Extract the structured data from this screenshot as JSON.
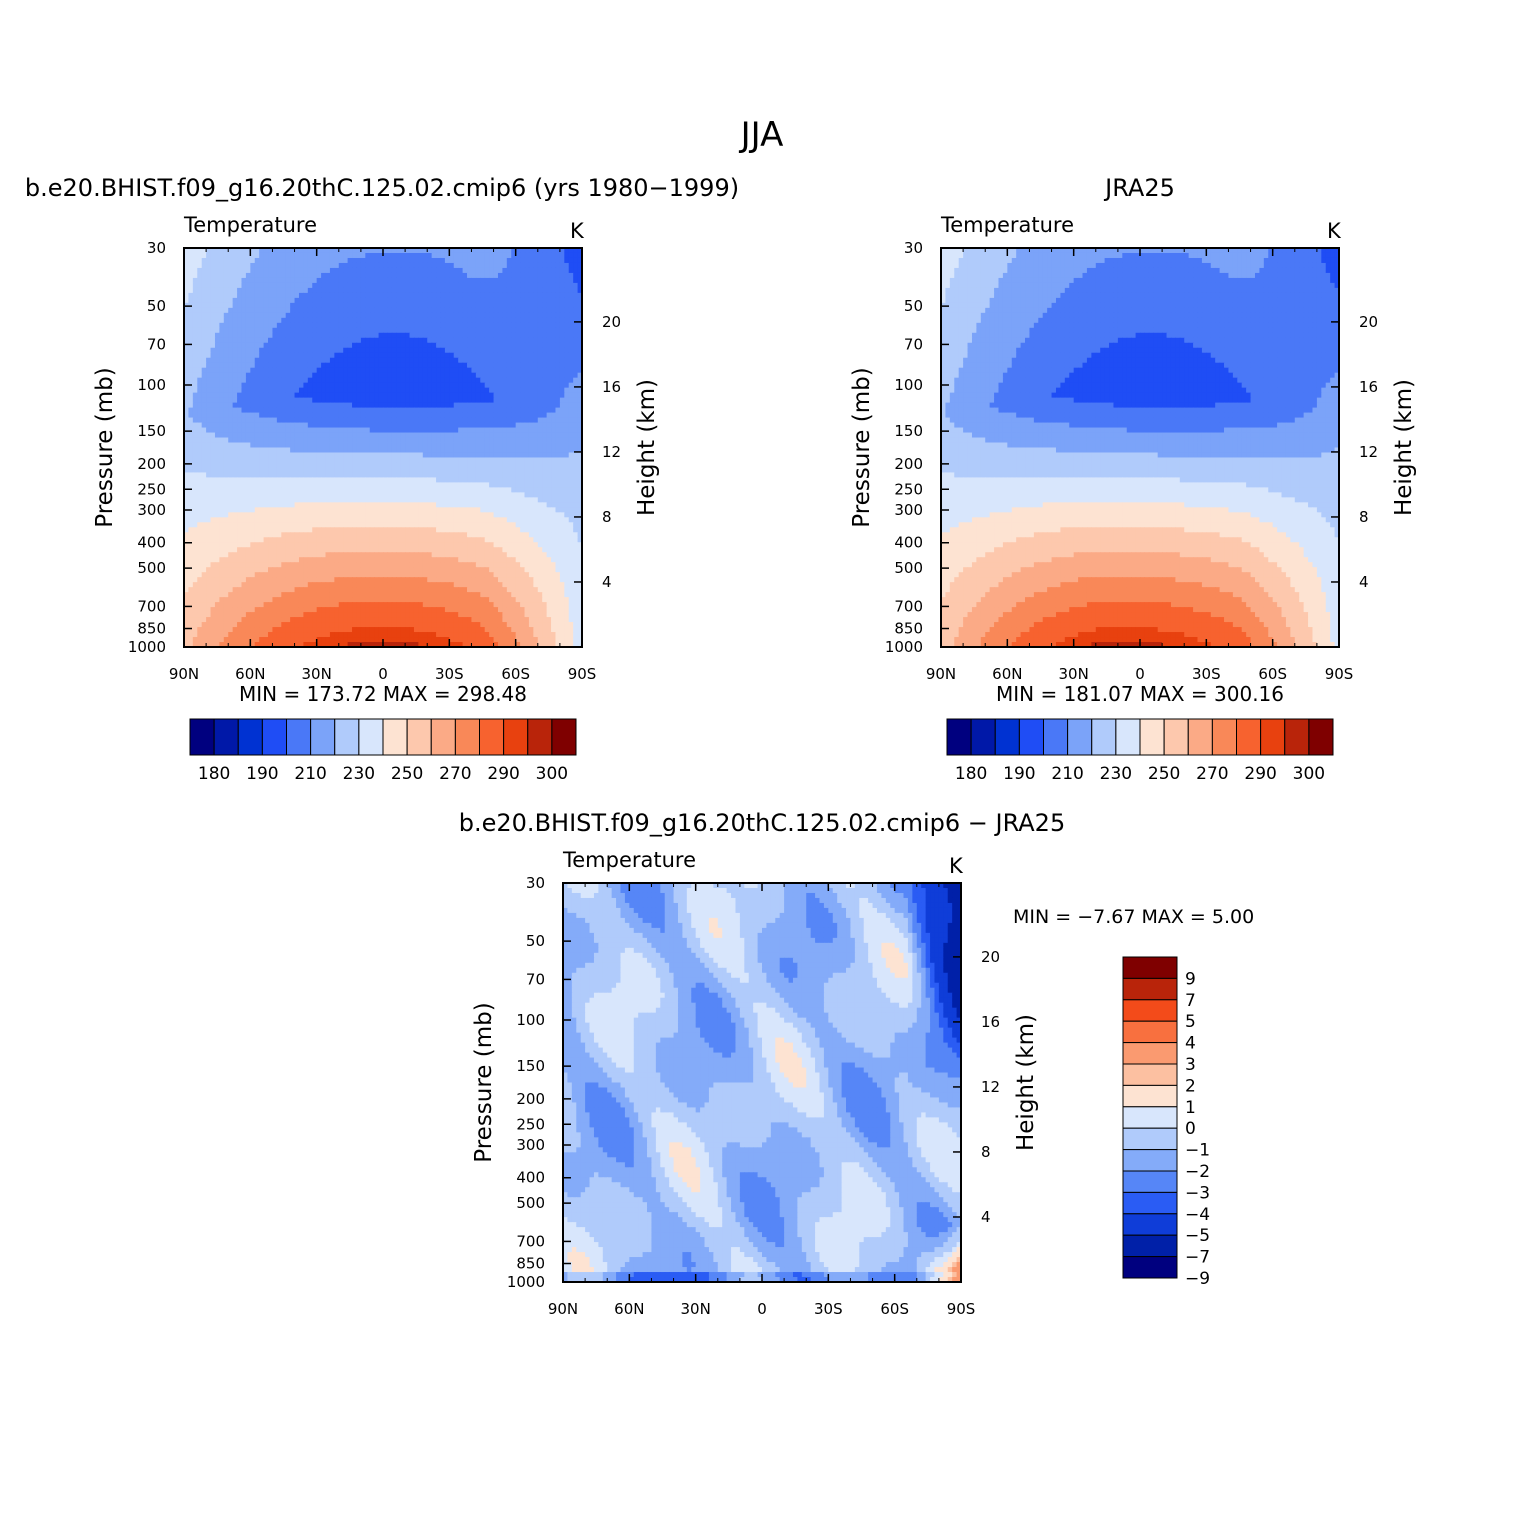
{
  "page": {
    "title": "JJA"
  },
  "chart_data": [
    {
      "type": "heatmap",
      "title": "b.e20.BHIST.f09_g16.20thC.125.02.cmip6 (yrs 1980−1999)",
      "left_string": "Temperature",
      "right_string": "K",
      "ylabel": "Pressure (mb)",
      "right_ylabel": "Height (km)",
      "x_ticks": [
        "90N",
        "60N",
        "30N",
        "0",
        "30S",
        "60S",
        "90S"
      ],
      "y_ticks": [
        "30",
        "50",
        "70",
        "100",
        "150",
        "200",
        "250",
        "300",
        "400",
        "500",
        "700",
        "850",
        "1000"
      ],
      "right_ticks": [
        "20",
        "16",
        "12",
        "8",
        "4"
      ],
      "stats_text": "MIN =  173.72   MAX =  298.48",
      "min": 173.72,
      "max": 298.48,
      "colorbar_labels": [
        "180",
        "190",
        "210",
        "230",
        "250",
        "270",
        "290",
        "300"
      ]
    },
    {
      "type": "heatmap",
      "title": "JRA25",
      "left_string": "Temperature",
      "right_string": "K",
      "ylabel": "Pressure (mb)",
      "right_ylabel": "Height (km)",
      "x_ticks": [
        "90N",
        "60N",
        "30N",
        "0",
        "30S",
        "60S",
        "90S"
      ],
      "y_ticks": [
        "30",
        "50",
        "70",
        "100",
        "150",
        "200",
        "250",
        "300",
        "400",
        "500",
        "700",
        "850",
        "1000"
      ],
      "right_ticks": [
        "20",
        "16",
        "12",
        "8",
        "4"
      ],
      "stats_text": "MIN =  181.07   MAX =  300.16",
      "min": 181.07,
      "max": 300.16,
      "colorbar_labels": [
        "180",
        "190",
        "210",
        "230",
        "250",
        "270",
        "290",
        "300"
      ]
    },
    {
      "type": "heatmap",
      "title": "b.e20.BHIST.f09_g16.20thC.125.02.cmip6 − JRA25",
      "left_string": "Temperature",
      "right_string": "K",
      "ylabel": "Pressure (mb)",
      "right_ylabel": "Height (km)",
      "x_ticks": [
        "90N",
        "60N",
        "30N",
        "0",
        "30S",
        "60S",
        "90S"
      ],
      "y_ticks": [
        "30",
        "50",
        "70",
        "100",
        "150",
        "200",
        "250",
        "300",
        "400",
        "500",
        "700",
        "850",
        "1000"
      ],
      "right_ticks": [
        "20",
        "16",
        "12",
        "8",
        "4"
      ],
      "stats_text": "MIN =    −7.67   MAX =      5.00",
      "min": -7.67,
      "max": 5.0,
      "colorbar_labels": [
        "9",
        "7",
        "5",
        "4",
        "3",
        "2",
        "1",
        "0",
        "−1",
        "−2",
        "−3",
        "−4",
        "−5",
        "−7",
        "−9"
      ]
    }
  ],
  "colors": {
    "abs_levels": [
      "#00007f",
      "#0018a8",
      "#0032d2",
      "#1f4df5",
      "#4a78f7",
      "#7ba3f9",
      "#b0cbfb",
      "#d8e6fc",
      "#fde3d2",
      "#fdc8ad",
      "#fbaa86",
      "#f98858",
      "#f7622f",
      "#e8410f",
      "#b9240a",
      "#7f0000"
    ],
    "diff_levels": [
      "#7f0000",
      "#b9240a",
      "#f34b1a",
      "#f8703f",
      "#fa9a70",
      "#fcc0a1",
      "#fde3d2",
      "#d8e6fc",
      "#b0cbfb",
      "#84abf9",
      "#5686f7",
      "#2a5cf4",
      "#0f3dd8",
      "#0020a8",
      "#00007f"
    ]
  }
}
